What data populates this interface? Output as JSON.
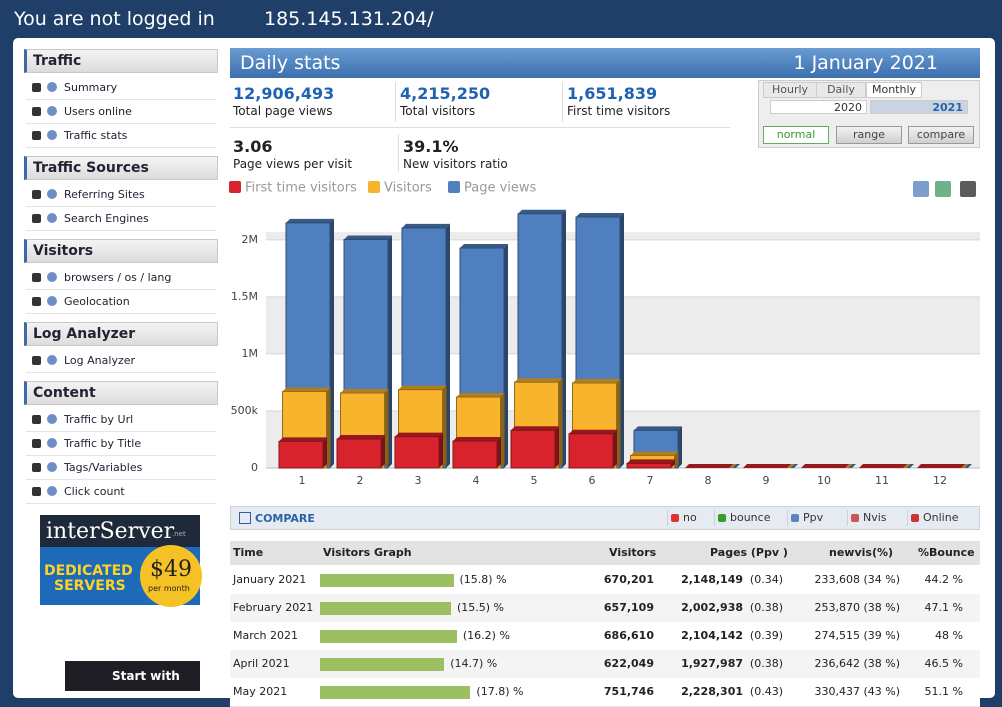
{
  "header": {
    "status": "You are not logged in",
    "ip": "185.145.131.204/"
  },
  "sidebar": {
    "sections": [
      {
        "title": "Traffic",
        "items": [
          "Summary",
          "Users online",
          "Traffic stats"
        ]
      },
      {
        "title": "Traffic Sources",
        "items": [
          "Referring Sites",
          "Search Engines"
        ]
      },
      {
        "title": "Visitors",
        "items": [
          "browsers / os / lang",
          "Geolocation"
        ]
      },
      {
        "title": "Log Analyzer",
        "items": [
          "Log Analyzer"
        ]
      },
      {
        "title": "Content",
        "items": [
          "Traffic by Url",
          "Traffic by Title",
          "Tags/Variables",
          "Click count"
        ]
      }
    ]
  },
  "ads": {
    "brand": "interServer",
    "tld": ".net",
    "line1": "DEDICATED",
    "line2": "SERVERS",
    "price": "$49",
    "period": "per month",
    "promo": "Start with"
  },
  "panel": {
    "title": "Daily stats",
    "date": "1 January 2021"
  },
  "stats": [
    {
      "value": "12,906,493",
      "label": "Total page views"
    },
    {
      "value": "4,215,250",
      "label": "Total visitors"
    },
    {
      "value": "1,651,839",
      "label": "First time visitors"
    },
    {
      "value": "3.06",
      "label": "Page views per visit"
    },
    {
      "value": "39.1%",
      "label": "New visitors ratio"
    }
  ],
  "tabs": {
    "modes": [
      "Hourly",
      "Daily",
      "Monthly"
    ],
    "years": [
      "2020",
      "2021"
    ],
    "buttons": [
      "normal",
      "range",
      "compare"
    ]
  },
  "chart_data": {
    "type": "bar",
    "categories": [
      "1",
      "2",
      "3",
      "4",
      "5",
      "6",
      "7",
      "8",
      "9",
      "10",
      "11",
      "12"
    ],
    "series": [
      {
        "name": "First time visitors",
        "color": "#d8232c",
        "values": [
          233608,
          253870,
          274515,
          236642,
          330437,
          300000,
          40000,
          0,
          0,
          0,
          0,
          0
        ]
      },
      {
        "name": "Visitors",
        "color": "#f8b42c",
        "values": [
          670201,
          657109,
          686610,
          622049,
          751746,
          745000,
          110000,
          0,
          0,
          0,
          0,
          0
        ]
      },
      {
        "name": "Page views",
        "color": "#4f7fbf",
        "values": [
          2148149,
          2002938,
          2104142,
          1927987,
          2228301,
          2200000,
          330000,
          0,
          0,
          0,
          0,
          0
        ]
      }
    ],
    "ylim": [
      0,
      2200000
    ],
    "yticks": [
      0,
      {
        "value": 500000,
        "label": "500k"
      },
      {
        "value": 1000000,
        "label": "1M"
      },
      {
        "value": 1500000,
        "label": "1.5M"
      },
      {
        "value": 2000000,
        "label": "2M"
      }
    ],
    "grid": true
  },
  "compare": {
    "label": "COMPARE",
    "options": [
      "no",
      "bounce",
      "Ppv",
      "Nvis",
      "Online"
    ]
  },
  "table": {
    "columns": [
      "Time",
      "Visitors Graph",
      "Visitors",
      "Pages (Ppv )",
      "newvis(%)",
      "%Bounce"
    ],
    "rows": [
      {
        "time": "January 2021",
        "share": {
          "value": 15.8,
          "label": "(15.8) %"
        },
        "visitors": "670,201",
        "pages": "2,148,149",
        "ppv": "(0.34)",
        "newvis": "233,608 (34 %)",
        "bounce": "44.2 %"
      },
      {
        "time": "February 2021",
        "share": {
          "value": 15.5,
          "label": "(15.5) %"
        },
        "visitors": "657,109",
        "pages": "2,002,938",
        "ppv": "(0.38)",
        "newvis": "253,870 (38 %)",
        "bounce": "47.1 %"
      },
      {
        "time": "March 2021",
        "share": {
          "value": 16.2,
          "label": "(16.2) %"
        },
        "visitors": "686,610",
        "pages": "2,104,142",
        "ppv": "(0.39)",
        "newvis": "274,515 (39 %)",
        "bounce": "48 %"
      },
      {
        "time": "April 2021",
        "share": {
          "value": 14.7,
          "label": "(14.7) %"
        },
        "visitors": "622,049",
        "pages": "1,927,987",
        "ppv": "(0.38)",
        "newvis": "236,642 (38 %)",
        "bounce": "46.5 %"
      },
      {
        "time": "May 2021",
        "share": {
          "value": 17.8,
          "label": "(17.8) %"
        },
        "visitors": "751,746",
        "pages": "2,228,301",
        "ppv": "(0.43)",
        "newvis": "330,437 (43 %)",
        "bounce": "51.1 %"
      }
    ]
  }
}
